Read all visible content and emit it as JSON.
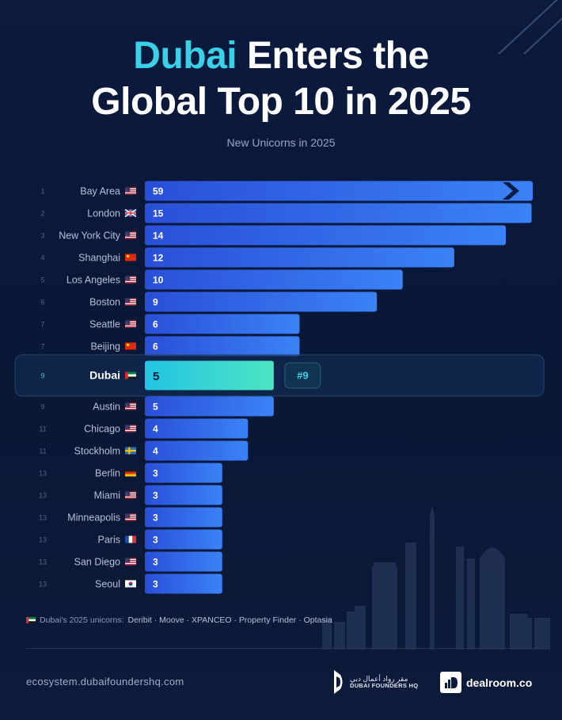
{
  "title": {
    "accent": "Dubai",
    "rest_line1": " Enters the",
    "line2": "Global Top 10 in 2025"
  },
  "subtitle": "New Unicorns in 2025",
  "chart_data": {
    "type": "bar",
    "orientation": "horizontal",
    "title": "Dubai Enters the Global Top 10 in 2025",
    "subtitle": "New Unicorns in 2025",
    "xlim": [
      0,
      15
    ],
    "axis_break_on": "Bay Area",
    "highlight": {
      "city": "Dubai",
      "rank_badge": "#9"
    },
    "rows": [
      {
        "rank": "1",
        "city": "Bay Area",
        "flag": "us",
        "value": 59
      },
      {
        "rank": "2",
        "city": "London",
        "flag": "gb",
        "value": 15
      },
      {
        "rank": "3",
        "city": "New York City",
        "flag": "us",
        "value": 14
      },
      {
        "rank": "4",
        "city": "Shanghai",
        "flag": "cn",
        "value": 12
      },
      {
        "rank": "5",
        "city": "Los Angeles",
        "flag": "us",
        "value": 10
      },
      {
        "rank": "6",
        "city": "Boston",
        "flag": "us",
        "value": 9
      },
      {
        "rank": "7",
        "city": "Seattle",
        "flag": "us",
        "value": 6
      },
      {
        "rank": "7",
        "city": "Beijing",
        "flag": "cn",
        "value": 6
      },
      {
        "rank": "9",
        "city": "Dubai",
        "flag": "ae",
        "value": 5
      },
      {
        "rank": "9",
        "city": "Austin",
        "flag": "us",
        "value": 5
      },
      {
        "rank": "11",
        "city": "Chicago",
        "flag": "us",
        "value": 4
      },
      {
        "rank": "11",
        "city": "Stockholm",
        "flag": "se",
        "value": 4
      },
      {
        "rank": "13",
        "city": "Berlin",
        "flag": "de",
        "value": 3
      },
      {
        "rank": "13",
        "city": "Miami",
        "flag": "us",
        "value": 3
      },
      {
        "rank": "13",
        "city": "Minneapolis",
        "flag": "us",
        "value": 3
      },
      {
        "rank": "13",
        "city": "Paris",
        "flag": "fr",
        "value": 3
      },
      {
        "rank": "13",
        "city": "San Diego",
        "flag": "us",
        "value": 3
      },
      {
        "rank": "13",
        "city": "Seoul",
        "flag": "kr",
        "value": 3
      }
    ]
  },
  "footnote": {
    "flag": "ae",
    "text": "Dubai's 2025 unicorns: ",
    "companies": "Deribit · Moove · XPANCEO · Property Finder · Optasia"
  },
  "footer": {
    "website": "ecosystem.dubaifoundershq.com",
    "dfhq_arabic": "مقر رواد أعمال دبي",
    "dfhq_english": "DUBAI FOUNDERS HQ",
    "dealroom": "dealroom.co"
  },
  "colors": {
    "background": "#0b1a3d",
    "bar_start": "#2a4fd8",
    "bar_end": "#3b82f6",
    "highlight_start": "#22c4e2",
    "highlight_end": "#4de5c3",
    "accent": "#3ad0e8"
  }
}
